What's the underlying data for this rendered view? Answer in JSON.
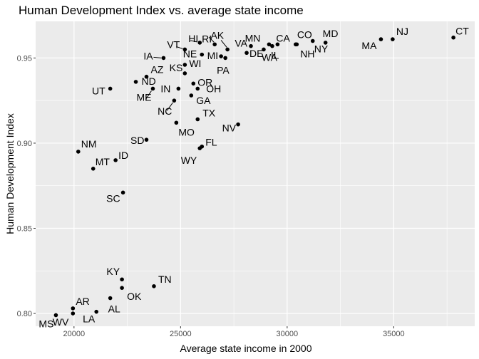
{
  "chart_data": {
    "type": "scatter",
    "title": "Human Development Index vs. average state income",
    "xlabel": "Average state income in 2000",
    "ylabel": "Human Development Index",
    "xlim": [
      18200,
      38800
    ],
    "ylim": [
      0.7925,
      0.9715
    ],
    "x_ticks": [
      20000,
      25000,
      30000,
      35000
    ],
    "x_tick_labels": [
      "20000",
      "25000",
      "30000",
      "35000"
    ],
    "y_ticks": [
      0.8,
      0.85,
      0.9,
      0.95
    ],
    "y_tick_labels": [
      "0.80",
      "0.85",
      "0.90",
      "0.95"
    ],
    "grid": true,
    "panel_background": "#ebebeb",
    "grid_color": "#ffffff",
    "point_color": "#000000",
    "points": [
      {
        "label": "CT",
        "x": 37800,
        "y": 0.962
      },
      {
        "label": "NJ",
        "x": 34950,
        "y": 0.961
      },
      {
        "label": "MA",
        "x": 34400,
        "y": 0.961
      },
      {
        "label": "MD",
        "x": 31800,
        "y": 0.959
      },
      {
        "label": "NY",
        "x": 31200,
        "y": 0.96
      },
      {
        "label": "CO",
        "x": 30400,
        "y": 0.958
      },
      {
        "label": "NH",
        "x": 30450,
        "y": 0.958
      },
      {
        "label": "CA",
        "x": 29550,
        "y": 0.958
      },
      {
        "label": "IL",
        "x": 29300,
        "y": 0.957
      },
      {
        "label": "MN",
        "x": 29150,
        "y": 0.958
      },
      {
        "label": "WA",
        "x": 28900,
        "y": 0.955
      },
      {
        "label": "VA",
        "x": 28300,
        "y": 0.957
      },
      {
        "label": "DE",
        "x": 28100,
        "y": 0.953
      },
      {
        "label": "AK",
        "x": 27200,
        "y": 0.955
      },
      {
        "label": "PA",
        "x": 27100,
        "y": 0.95
      },
      {
        "label": "RI",
        "x": 26600,
        "y": 0.958
      },
      {
        "label": "HI",
        "x": 25900,
        "y": 0.959
      },
      {
        "label": "MI",
        "x": 26900,
        "y": 0.951
      },
      {
        "label": "VT",
        "x": 25200,
        "y": 0.955
      },
      {
        "label": "NE",
        "x": 26000,
        "y": 0.952
      },
      {
        "label": "IA",
        "x": 24200,
        "y": 0.95
      },
      {
        "label": "WI",
        "x": 25200,
        "y": 0.946
      },
      {
        "label": "AZ",
        "x": 23400,
        "y": 0.939
      },
      {
        "label": "KS",
        "x": 25200,
        "y": 0.941
      },
      {
        "label": "OR",
        "x": 25600,
        "y": 0.935
      },
      {
        "label": "UT",
        "x": 21700,
        "y": 0.932
      },
      {
        "label": "ND",
        "x": 22900,
        "y": 0.936
      },
      {
        "label": "ME",
        "x": 23700,
        "y": 0.932
      },
      {
        "label": "IN",
        "x": 24900,
        "y": 0.932
      },
      {
        "label": "OH",
        "x": 25800,
        "y": 0.932
      },
      {
        "label": "GA",
        "x": 25500,
        "y": 0.928
      },
      {
        "label": "NC",
        "x": 24700,
        "y": 0.925
      },
      {
        "label": "TX",
        "x": 25800,
        "y": 0.914
      },
      {
        "label": "MO",
        "x": 24800,
        "y": 0.912
      },
      {
        "label": "NV",
        "x": 27700,
        "y": 0.911
      },
      {
        "label": "FL",
        "x": 26000,
        "y": 0.898
      },
      {
        "label": "WY",
        "x": 25900,
        "y": 0.897
      },
      {
        "label": "SD",
        "x": 23400,
        "y": 0.902
      },
      {
        "label": "NM",
        "x": 20200,
        "y": 0.895
      },
      {
        "label": "ID",
        "x": 21950,
        "y": 0.89
      },
      {
        "label": "MT",
        "x": 20900,
        "y": 0.885
      },
      {
        "label": "SC",
        "x": 22300,
        "y": 0.871
      },
      {
        "label": "KY",
        "x": 22250,
        "y": 0.82
      },
      {
        "label": "TN",
        "x": 23750,
        "y": 0.816
      },
      {
        "label": "OK",
        "x": 22250,
        "y": 0.815
      },
      {
        "label": "AL",
        "x": 21700,
        "y": 0.809
      },
      {
        "label": "AR",
        "x": 19950,
        "y": 0.803
      },
      {
        "label": "LA",
        "x": 21050,
        "y": 0.801
      },
      {
        "label": "WV",
        "x": 19950,
        "y": 0.8
      },
      {
        "label": "MS",
        "x": 19150,
        "y": 0.799
      }
    ]
  }
}
